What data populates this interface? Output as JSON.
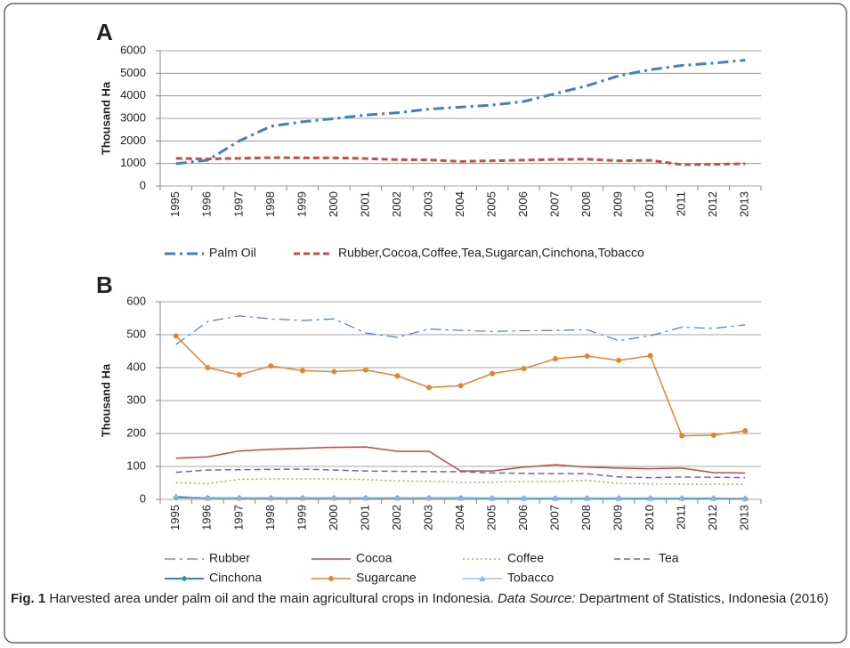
{
  "chart_data": [
    {
      "type": "line",
      "panel": "A",
      "y_label": "Thousand Ha",
      "categories": [
        "1995",
        "1996",
        "1997",
        "1998",
        "1999",
        "2000",
        "2001",
        "2002",
        "2003",
        "2004",
        "2005",
        "2006",
        "2007",
        "2008",
        "2009",
        "2010",
        "2011",
        "2012",
        "2013"
      ],
      "ylim": [
        0,
        6000
      ],
      "yticks": [
        0,
        1000,
        2000,
        3000,
        4000,
        5000,
        6000
      ],
      "grid": true,
      "series": [
        {
          "name": "Palm Oil",
          "color": "#4a7ebb",
          "dash": "dash-dot",
          "width": 3,
          "values": [
            990,
            1150,
            2000,
            2650,
            2850,
            2990,
            3150,
            3250,
            3410,
            3500,
            3590,
            3750,
            4100,
            4450,
            4890,
            5160,
            5350,
            5450,
            5580
          ]
        },
        {
          "name": "Rubber,Cocoa,Coffee,Tea,Sugarcan,Cinchona,Tobacco",
          "color": "#c0504d",
          "dash": "dash",
          "width": 3,
          "values": [
            1230,
            1200,
            1230,
            1260,
            1250,
            1250,
            1220,
            1170,
            1160,
            1090,
            1120,
            1150,
            1180,
            1190,
            1120,
            1140,
            950,
            960,
            990
          ]
        }
      ]
    },
    {
      "type": "line",
      "panel": "B",
      "y_label": "Thousand Ha",
      "categories": [
        "1995",
        "1996",
        "1997",
        "1998",
        "1999",
        "2000",
        "2001",
        "2002",
        "2003",
        "2004",
        "2005",
        "2006",
        "2007",
        "2008",
        "2009",
        "2010",
        "2011",
        "2012",
        "2013"
      ],
      "ylim": [
        0,
        600
      ],
      "yticks": [
        0,
        100,
        200,
        300,
        400,
        500,
        600
      ],
      "grid": true,
      "series": [
        {
          "name": "Rubber",
          "color": "#4a7ebb",
          "dash": "dash-dot",
          "width": 1.2,
          "values": [
            470,
            540,
            557,
            548,
            543,
            548,
            505,
            492,
            517,
            513,
            510,
            512,
            513,
            515,
            482,
            497,
            523,
            519,
            530
          ]
        },
        {
          "name": "Cocoa",
          "color": "#be4b48",
          "dash": "solid",
          "width": 1.5,
          "values": [
            125,
            129,
            147,
            152,
            155,
            158,
            159,
            146,
            146,
            86,
            86,
            98,
            105,
            98,
            95,
            93,
            95,
            81,
            80
          ]
        },
        {
          "name": "Coffee",
          "color": "#98b954",
          "dash": "dot",
          "width": 1.5,
          "values": [
            51,
            48,
            61,
            62,
            62,
            62,
            60,
            56,
            55,
            52,
            52,
            54,
            54,
            58,
            48,
            47,
            46,
            46,
            46
          ]
        },
        {
          "name": "Tea",
          "color": "#7d60a0",
          "dash": "dash",
          "width": 1.5,
          "values": [
            82,
            89,
            90,
            91,
            92,
            89,
            86,
            85,
            84,
            84,
            80,
            79,
            78,
            78,
            68,
            66,
            68,
            67,
            66
          ]
        },
        {
          "name": "Cinchona",
          "color": "#2c8fb0",
          "dash": "solid",
          "width": 2,
          "marker": "diamond",
          "values": [
            6,
            4,
            4,
            4,
            4,
            4,
            4,
            4,
            4,
            4,
            3,
            3,
            3,
            3,
            3,
            3,
            3,
            3,
            2
          ]
        },
        {
          "name": "Sugarcane",
          "color": "#e2862f",
          "dash": "solid",
          "width": 1.5,
          "marker": "circle",
          "values": [
            496,
            400,
            378,
            405,
            391,
            388,
            393,
            375,
            340,
            345,
            382,
            397,
            427,
            435,
            422,
            436,
            193,
            195,
            208
          ]
        },
        {
          "name": "Tobacco",
          "color": "#8db3e2",
          "dash": "solid",
          "width": 1.2,
          "marker": "triangle",
          "values": [
            10,
            4,
            5,
            5,
            5,
            5,
            5,
            5,
            5,
            4,
            4,
            4,
            4,
            4,
            4,
            4,
            4,
            4,
            3
          ]
        }
      ]
    }
  ],
  "caption": {
    "label": "Fig. 1",
    "text": "Harvested area under palm oil and the main agricultural crops in Indonesia.",
    "source_label": "Data Source:",
    "source": "Department of Statistics, Indonesia (2016)"
  }
}
